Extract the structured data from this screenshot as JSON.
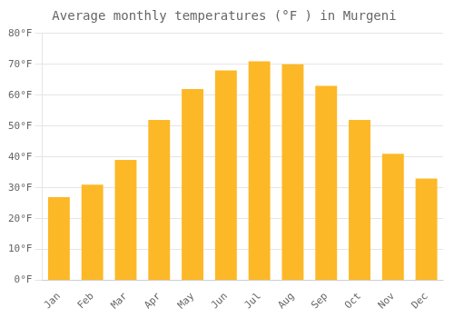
{
  "chart_data": {
    "type": "bar",
    "title": "Average monthly temperatures (°F ) in Murgeni",
    "categories": [
      "Jan",
      "Feb",
      "Mar",
      "Apr",
      "May",
      "Jun",
      "Jul",
      "Aug",
      "Sep",
      "Oct",
      "Nov",
      "Dec"
    ],
    "values": [
      27,
      31,
      39,
      52,
      62,
      68,
      71,
      70,
      63,
      52,
      41,
      33
    ],
    "color": "#FDB827",
    "ylim": [
      0,
      80
    ],
    "yticks": [
      {
        "value": 0,
        "label": "0°F"
      },
      {
        "value": 10,
        "label": "10°F"
      },
      {
        "value": 20,
        "label": "20°F"
      },
      {
        "value": 30,
        "label": "30°F"
      },
      {
        "value": 40,
        "label": "40°F"
      },
      {
        "value": 50,
        "label": "50°F"
      },
      {
        "value": 60,
        "label": "60°F"
      },
      {
        "value": 70,
        "label": "70°F"
      },
      {
        "value": 80,
        "label": "80°F"
      }
    ],
    "grid": true
  }
}
